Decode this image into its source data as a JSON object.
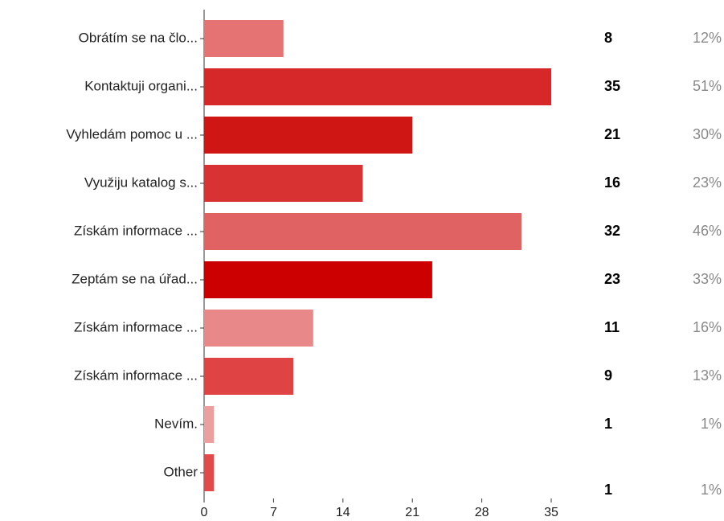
{
  "chart_data": {
    "type": "bar",
    "orientation": "horizontal",
    "categories": [
      "Obrátím se na člo...",
      "Kontaktuji organi...",
      "Vyhledám pomoc u ...",
      "Využiju katalog s...",
      "Získám informace ...",
      "Zeptám se na úřad...",
      "Získám informace ...",
      "Získám informace ...",
      "Nevím.",
      "Other"
    ],
    "values": [
      8,
      35,
      21,
      16,
      32,
      23,
      11,
      9,
      1,
      1
    ],
    "percents": [
      "12%",
      "51%",
      "30%",
      "23%",
      "46%",
      "33%",
      "16%",
      "13%",
      "1%",
      "1%"
    ],
    "colors": [
      "#e57373",
      "#d62828",
      "#d01515",
      "#d93232",
      "#e06262",
      "#cc0000",
      "#e88888",
      "#df4343",
      "#eba0a0",
      "#e04a4a"
    ],
    "xlim": [
      0,
      35
    ],
    "xticks": [
      0,
      7,
      14,
      21,
      28,
      35
    ]
  }
}
